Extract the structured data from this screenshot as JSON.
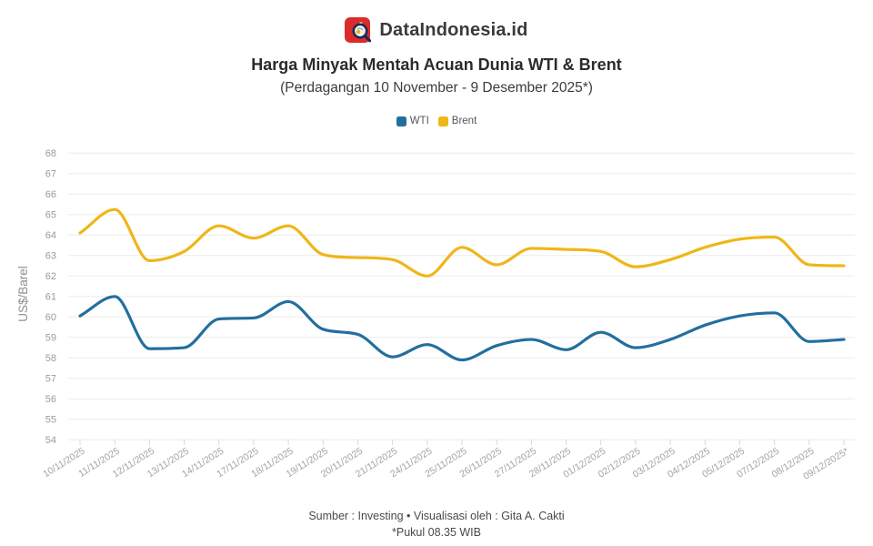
{
  "brand": {
    "name": "DataIndonesia.id",
    "logo_letter": "d",
    "logo_color": "#da2c2c"
  },
  "header": {
    "title": "Harga Minyak Mentah Acuan Dunia WTI & Brent",
    "subtitle": "(Perdagangan 10 November - 9 Desember 2025*)"
  },
  "footer": {
    "line1": "Sumber : Investing • Visualisasi oleh : Gita A. Cakti",
    "line2": "*Pukul 08.35 WIB"
  },
  "chart_data": {
    "type": "line",
    "title": "Harga Minyak Mentah Acuan Dunia WTI & Brent",
    "xlabel": "",
    "ylabel": "US$/Barel",
    "ylim": [
      54,
      68
    ],
    "ytick_step": 1,
    "grid": true,
    "legend_position": "top",
    "curve": "smooth-monotone",
    "categories": [
      "10/11/2025",
      "11/11/2025",
      "12/11/2025",
      "13/11/2025",
      "14/11/2025",
      "17/11/2025",
      "18/11/2025",
      "19/11/2025",
      "20/11/2025",
      "21/11/2025",
      "24/11/2025",
      "25/11/2025",
      "26/11/2025",
      "27/11/2025",
      "28/11/2025",
      "01/12/2025",
      "02/12/2025",
      "03/12/2025",
      "04/12/2025",
      "05/12/2025",
      "07/12/2025",
      "08/12/2025",
      "09/12/2025*"
    ],
    "series": [
      {
        "name": "WTI",
        "color": "#226f9e",
        "values": [
          60.05,
          61.0,
          58.45,
          58.5,
          59.9,
          59.95,
          60.75,
          59.4,
          59.15,
          58.05,
          58.65,
          57.9,
          58.6,
          58.9,
          58.4,
          59.25,
          58.5,
          58.9,
          59.6,
          60.05,
          60.2,
          58.8,
          58.9
        ]
      },
      {
        "name": "Brent",
        "color": "#efb617",
        "values": [
          64.1,
          65.25,
          62.75,
          63.2,
          64.45,
          63.85,
          64.45,
          63.05,
          62.9,
          62.8,
          62.0,
          63.4,
          62.55,
          63.35,
          63.3,
          63.2,
          62.45,
          62.8,
          63.4,
          63.8,
          63.9,
          62.55,
          62.5
        ]
      }
    ]
  }
}
